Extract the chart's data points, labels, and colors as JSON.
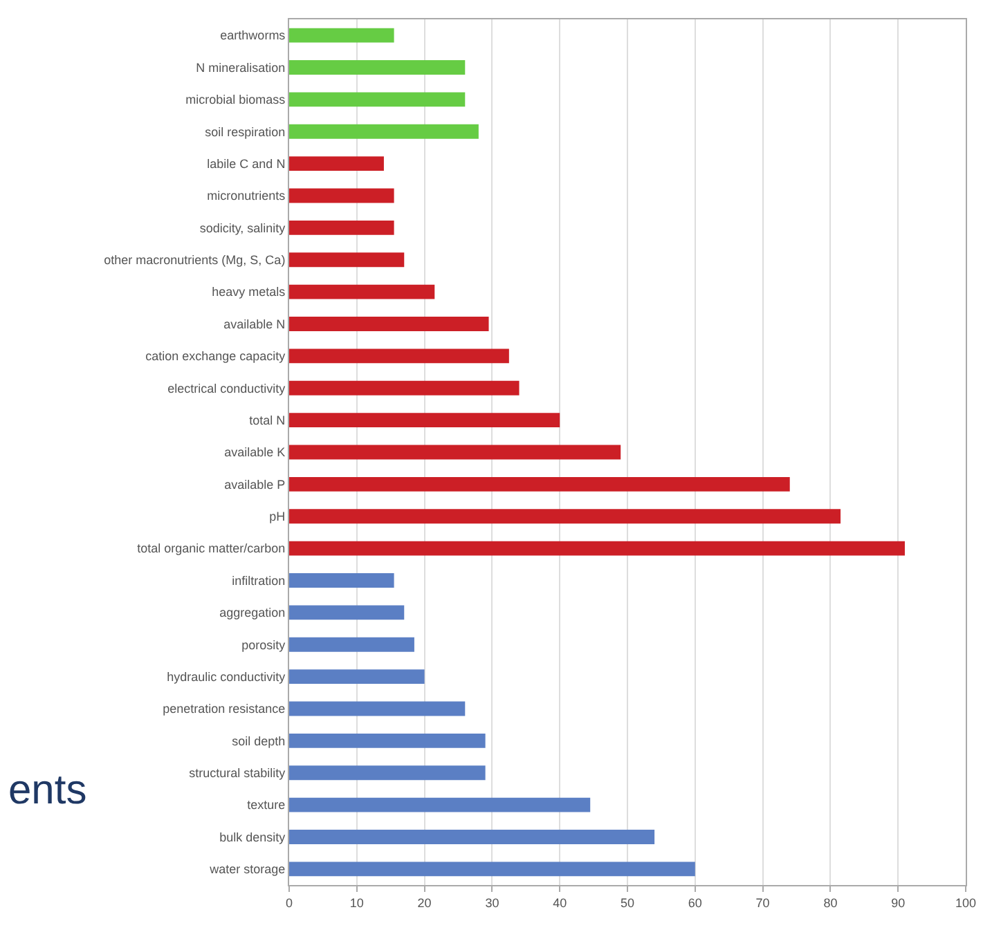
{
  "chart_data": {
    "type": "bar",
    "orientation": "horizontal",
    "categories": [
      "earthworms",
      "N mineralisation",
      "microbial biomass",
      "soil respiration",
      "labile C and N",
      "micronutrients",
      "sodicity, salinity",
      "other macronutrients (Mg, S, Ca)",
      "heavy metals",
      "available N",
      "cation exchange capacity",
      "electrical conductivity",
      "total N",
      "available K",
      "available P",
      "pH",
      "total organic matter/carbon",
      "infiltration",
      "aggregation",
      "porosity",
      "hydraulic conductivity",
      "penetration resistance",
      "soil depth",
      "structural stability",
      "texture",
      "bulk density",
      "water storage"
    ],
    "values": [
      15.5,
      26,
      26,
      28,
      14,
      15.5,
      15.5,
      17,
      21.5,
      29.5,
      32.5,
      34,
      40,
      49,
      74,
      81.5,
      91,
      15.5,
      17,
      18.5,
      20,
      26,
      29,
      29,
      44.5,
      54,
      60
    ],
    "colors": [
      "#66cc44",
      "#66cc44",
      "#66cc44",
      "#66cc44",
      "#cc1f26",
      "#cc1f26",
      "#cc1f26",
      "#cc1f26",
      "#cc1f26",
      "#cc1f26",
      "#cc1f26",
      "#cc1f26",
      "#cc1f26",
      "#cc1f26",
      "#cc1f26",
      "#cc1f26",
      "#cc1f26",
      "#5b7fc4",
      "#5b7fc4",
      "#5b7fc4",
      "#5b7fc4",
      "#5b7fc4",
      "#5b7fc4",
      "#5b7fc4",
      "#5b7fc4",
      "#5b7fc4",
      "#5b7fc4"
    ],
    "xlim": [
      0,
      100
    ],
    "xticks": [
      0,
      10,
      20,
      30,
      40,
      50,
      60,
      70,
      80,
      90,
      100
    ],
    "grid": "x",
    "legend": false,
    "annotations": [
      "ents"
    ]
  }
}
